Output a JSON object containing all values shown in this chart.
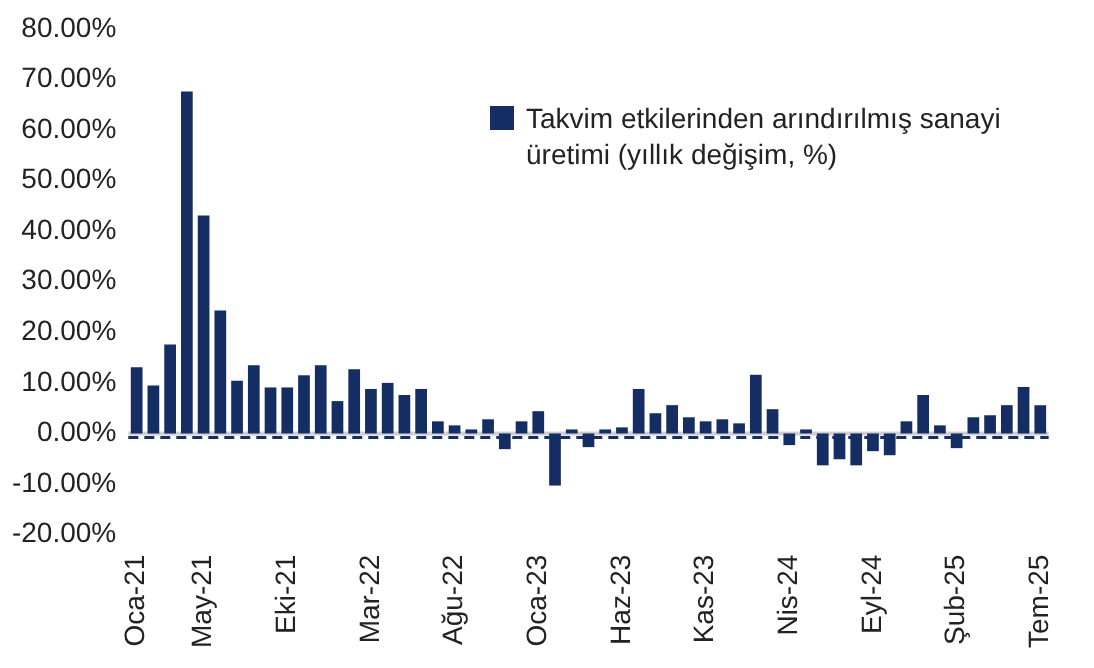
{
  "chart_data": {
    "type": "bar",
    "categories": [
      "Oca-21",
      null,
      null,
      null,
      "May-21",
      null,
      null,
      null,
      null,
      "Eki-21",
      null,
      null,
      null,
      null,
      "Mar-22",
      null,
      null,
      null,
      null,
      "Ağu-22",
      null,
      null,
      null,
      null,
      "Oca-23",
      null,
      null,
      null,
      null,
      "Haz-23",
      null,
      null,
      null,
      null,
      "Kas-23",
      null,
      null,
      null,
      null,
      "Nis-24",
      null,
      null,
      null,
      null,
      "Eyl-24",
      null,
      null,
      null,
      null,
      "Şub-25",
      null,
      null,
      null,
      null,
      "Tem-25"
    ],
    "series": [
      {
        "name": "Takvim etkilerinden arındırılmış sanayi üretimi (yıllık değişim, %)",
        "color": "#142d63",
        "values": [
          13.1,
          9.5,
          17.6,
          67.6,
          43.1,
          24.3,
          10.4,
          13.5,
          9.1,
          9.1,
          11.5,
          13.5,
          6.4,
          12.7,
          8.8,
          10,
          7.6,
          8.8,
          2.4,
          1.6,
          0.8,
          2.8,
          -3.1,
          2.4,
          4.4,
          -10.3,
          0.8,
          -2.7,
          0.8,
          1.2,
          8.8,
          4,
          5.6,
          3.2,
          2.4,
          2.8,
          2,
          11.6,
          4.8,
          -2.3,
          0.8,
          -6.3,
          -5.1,
          -6.3,
          -3.5,
          -4.3,
          2.4,
          7.6,
          1.6,
          -2.9,
          3.2,
          3.6,
          5.6,
          9.2,
          5.6
        ]
      }
    ],
    "ylim": [
      -20,
      80
    ],
    "yticks": [
      {
        "value": -20,
        "label": "-20.00%"
      },
      {
        "value": -10,
        "label": "-10.00%"
      },
      {
        "value": 0,
        "label": "0.00%"
      },
      {
        "value": 10,
        "label": "10.00%"
      },
      {
        "value": 20,
        "label": "20.00%"
      },
      {
        "value": 30,
        "label": "30.00%"
      },
      {
        "value": 40,
        "label": "40.00%"
      },
      {
        "value": 50,
        "label": "50.00%"
      },
      {
        "value": 60,
        "label": "60.00%"
      },
      {
        "value": 70,
        "label": "70.00%"
      },
      {
        "value": 80,
        "label": "80.00%"
      }
    ],
    "ref_lines": [
      {
        "axis": "y",
        "value": 0,
        "label": null,
        "color": "#142d63",
        "line_style": "dashed"
      }
    ],
    "grid": false,
    "legend": "top right"
  }
}
